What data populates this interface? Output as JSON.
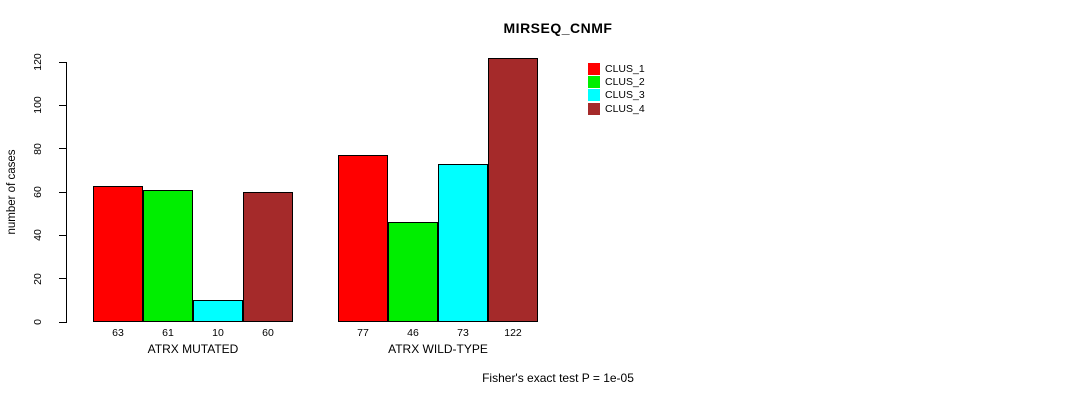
{
  "chart_data": {
    "type": "bar",
    "title": "MIRSEQ_CNMF",
    "ylabel": "number of cases",
    "xlabel": "",
    "ylim": [
      0,
      120
    ],
    "yticks": [
      0,
      20,
      40,
      60,
      80,
      100,
      120
    ],
    "grid": false,
    "legend_position": "top-right",
    "categories": [
      "ATRX MUTATED",
      "ATRX WILD-TYPE"
    ],
    "series": [
      {
        "name": "CLUS_1",
        "color": "#ff0000",
        "values": [
          63,
          77
        ]
      },
      {
        "name": "CLUS_2",
        "color": "#00ee00",
        "values": [
          61,
          46
        ]
      },
      {
        "name": "CLUS_3",
        "color": "#00ffff",
        "values": [
          10,
          73
        ]
      },
      {
        "name": "CLUS_4",
        "color": "#a52a2a",
        "values": [
          60,
          122
        ]
      }
    ],
    "bar_value_labels": [
      [
        63,
        61,
        10,
        60
      ],
      [
        77,
        46,
        73,
        122
      ]
    ],
    "footnote": "Fisher's exact test P = 1e-05"
  }
}
